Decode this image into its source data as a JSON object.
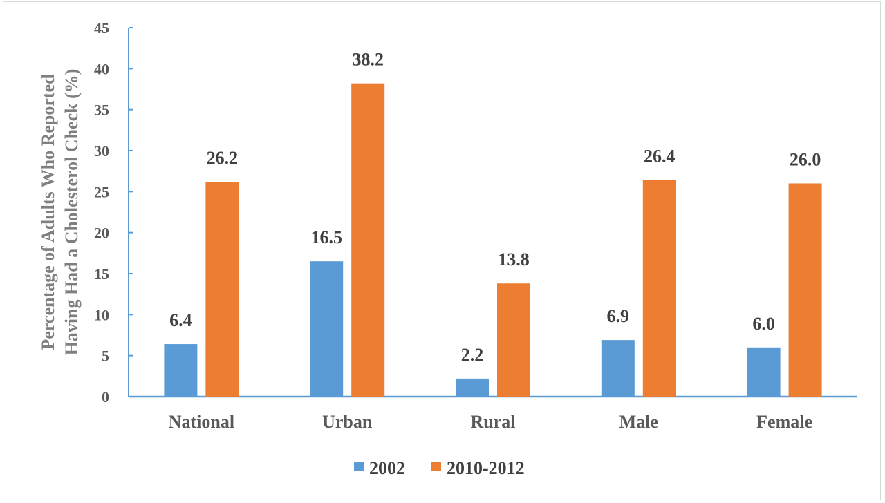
{
  "chart_data": {
    "type": "bar",
    "ylabel": [
      "Percentage of Adults Who Reported",
      "Having Had a Cholesterol Check (%)"
    ],
    "categories": [
      "National",
      "Urban",
      "Rural",
      "Male",
      "Female"
    ],
    "series": [
      {
        "name": "2002",
        "values": [
          6.4,
          16.5,
          2.2,
          6.9,
          6.0
        ],
        "labels": [
          "6.4",
          "16.5",
          "2.2",
          "6.9",
          "6.0"
        ],
        "color": "#5b9bd5"
      },
      {
        "name": "2010-2012",
        "values": [
          26.2,
          38.2,
          13.8,
          26.4,
          26.0
        ],
        "labels": [
          "26.2",
          "38.2",
          "13.8",
          "26.4",
          "26.0"
        ],
        "color": "#ed7d31"
      }
    ],
    "ylim": [
      0,
      45
    ],
    "yticks": [
      0,
      5,
      10,
      15,
      20,
      25,
      30,
      35,
      40,
      45
    ],
    "grid": false,
    "legend": "bottom",
    "axis_color": "#5b9bd5"
  }
}
